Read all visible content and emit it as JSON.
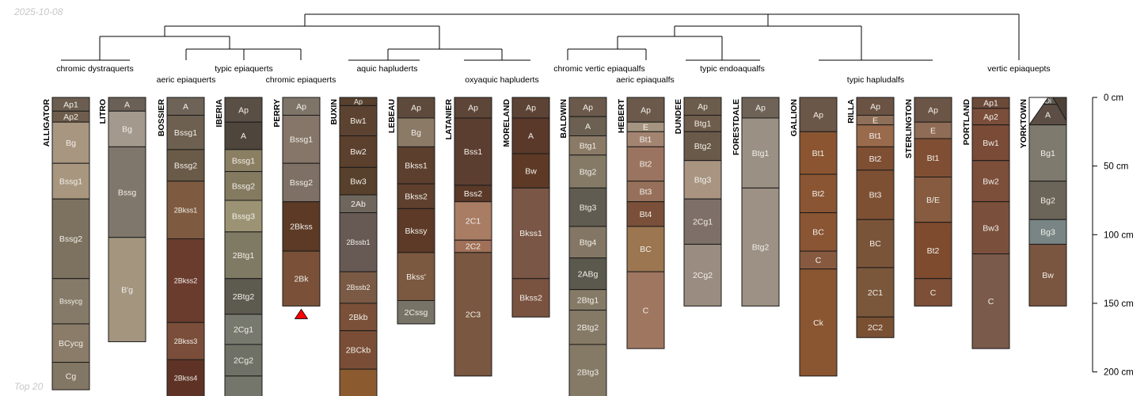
{
  "date": "2025-10-08",
  "footer": "Top 20",
  "colors": {
    "outline": "#1a1a1a",
    "tree": "#000000",
    "marker": "#ff0000"
  },
  "axis": {
    "unit": "cm",
    "ticks": [
      0,
      50,
      100,
      150,
      200
    ],
    "tick_labels": [
      "0 cm",
      "50 cm",
      "100 cm",
      "150 cm",
      "200 cm"
    ]
  },
  "taxa": [
    {
      "label": "chromic dystraquerts",
      "profiles": [
        "ALLIGATOR",
        "LITRO"
      ]
    },
    {
      "label": "aeric epiaquerts",
      "profiles": [
        "BOSSIER"
      ]
    },
    {
      "label": "typic epiaquerts",
      "profiles": [
        "IBERIA"
      ]
    },
    {
      "label": "chromic epiaquerts",
      "profiles": [
        "PERRY"
      ]
    },
    {
      "label": "aquic hapluderts",
      "profiles": [
        "BUXIN",
        "LEBEAU"
      ]
    },
    {
      "label": "oxyaquic hapluderts",
      "profiles": [
        "LATANIER",
        "MORELAND"
      ]
    },
    {
      "label": "chromic vertic epiaqualfs",
      "profiles": [
        "BALDWIN"
      ]
    },
    {
      "label": "aeric epiaqualfs",
      "profiles": [
        "HEBERT"
      ]
    },
    {
      "label": "typic endoaqualfs",
      "profiles": [
        "DUNDEE",
        "FORESTDALE"
      ]
    },
    {
      "label": "typic hapludalfs",
      "profiles": [
        "GALLION",
        "RILLA",
        "STERLINGTON",
        "PORTLAND"
      ]
    },
    {
      "label": "vertic epiaquepts",
      "profiles": [
        "YORKTOWN"
      ]
    }
  ],
  "profiles": [
    {
      "name": "ALLIGATOR",
      "horizons": [
        {
          "name": "Ap1",
          "top": 0,
          "bottom": 10,
          "color": "#6b5e50"
        },
        {
          "name": "Ap2",
          "top": 10,
          "bottom": 18,
          "color": "#6e5d4c"
        },
        {
          "name": "Bg",
          "top": 18,
          "bottom": 48,
          "color": "#a89680"
        },
        {
          "name": "Bssg1",
          "top": 48,
          "bottom": 74,
          "color": "#a8967f"
        },
        {
          "name": "Bssg2",
          "top": 74,
          "bottom": 132,
          "color": "#7d7260"
        },
        {
          "name": "Bssycg",
          "top": 132,
          "bottom": 165,
          "color": "#857a68"
        },
        {
          "name": "BCycg",
          "top": 165,
          "bottom": 193,
          "color": "#8a7c68"
        },
        {
          "name": "Cg",
          "top": 193,
          "bottom": 213,
          "color": "#827664"
        }
      ]
    },
    {
      "name": "LITRO",
      "horizons": [
        {
          "name": "A",
          "top": 0,
          "bottom": 10,
          "color": "#6a6055"
        },
        {
          "name": "Bg",
          "top": 10,
          "bottom": 36,
          "color": "#a39a8d"
        },
        {
          "name": "Bssg",
          "top": 36,
          "bottom": 102,
          "color": "#7f776c"
        },
        {
          "name": "B'g",
          "top": 102,
          "bottom": 178,
          "color": "#a4957f"
        }
      ]
    },
    {
      "name": "BOSSIER",
      "horizons": [
        {
          "name": "A",
          "top": 0,
          "bottom": 13,
          "color": "#6d6356"
        },
        {
          "name": "Bssg1",
          "top": 13,
          "bottom": 38,
          "color": "#6e6050"
        },
        {
          "name": "Bssg2",
          "top": 38,
          "bottom": 61,
          "color": "#6a5a48"
        },
        {
          "name": "2Bkss1",
          "top": 61,
          "bottom": 103,
          "color": "#7e5a40"
        },
        {
          "name": "2Bkss2",
          "top": 103,
          "bottom": 164,
          "color": "#6a3c2e"
        },
        {
          "name": "2Bkss3",
          "top": 164,
          "bottom": 191,
          "color": "#7a4e3a"
        },
        {
          "name": "2Bkss4",
          "top": 191,
          "bottom": 218,
          "color": "#5e3326"
        }
      ]
    },
    {
      "name": "IBERIA",
      "horizons": [
        {
          "name": "Ap",
          "top": 0,
          "bottom": 18,
          "color": "#5a4f45"
        },
        {
          "name": "A",
          "top": 18,
          "bottom": 38,
          "color": "#4e453c"
        },
        {
          "name": "Bssg1",
          "top": 38,
          "bottom": 54,
          "color": "#8b7f63"
        },
        {
          "name": "Bssg2",
          "top": 54,
          "bottom": 75,
          "color": "#837a60"
        },
        {
          "name": "Bssg3",
          "top": 75,
          "bottom": 98,
          "color": "#9c9374"
        },
        {
          "name": "2Btg1",
          "top": 98,
          "bottom": 132,
          "color": "#7f7a63"
        },
        {
          "name": "2Btg2",
          "top": 132,
          "bottom": 158,
          "color": "#5d5a50"
        },
        {
          "name": "2Cg1",
          "top": 158,
          "bottom": 180,
          "color": "#77786e"
        },
        {
          "name": "2Cg2",
          "top": 180,
          "bottom": 203,
          "color": "#707166"
        },
        {
          "name": "",
          "top": 203,
          "bottom": 220,
          "color": "#75766b"
        }
      ]
    },
    {
      "name": "PERRY",
      "horizons": [
        {
          "name": "Ap",
          "top": 0,
          "bottom": 13,
          "color": "#7f7468"
        },
        {
          "name": "Bssg1",
          "top": 13,
          "bottom": 48,
          "color": "#857669"
        },
        {
          "name": "Bssg2",
          "top": 48,
          "bottom": 76,
          "color": "#7e7064"
        },
        {
          "name": "2Bkss",
          "top": 76,
          "bottom": 112,
          "color": "#5c3a26"
        },
        {
          "name": "2Bk",
          "top": 112,
          "bottom": 152,
          "color": "#7a5138"
        }
      ]
    },
    {
      "name": "BUXIN",
      "horizons": [
        {
          "name": "Ap",
          "top": 0,
          "bottom": 6,
          "color": "#56402e"
        },
        {
          "name": "Bw1",
          "top": 6,
          "bottom": 28,
          "color": "#5c4331"
        },
        {
          "name": "Bw2",
          "top": 28,
          "bottom": 51,
          "color": "#5b402d"
        },
        {
          "name": "Bw3",
          "top": 51,
          "bottom": 71,
          "color": "#57402c"
        },
        {
          "name": "2Ab",
          "top": 71,
          "bottom": 84,
          "color": "#6e665d"
        },
        {
          "name": "2Bssb1",
          "top": 84,
          "bottom": 127,
          "color": "#675a55"
        },
        {
          "name": "2Bssb2",
          "top": 127,
          "bottom": 150,
          "color": "#7a5a45"
        },
        {
          "name": "2Bkb",
          "top": 150,
          "bottom": 170,
          "color": "#7a5038"
        },
        {
          "name": "2BCkb",
          "top": 170,
          "bottom": 198,
          "color": "#7a4e36"
        },
        {
          "name": "",
          "top": 198,
          "bottom": 220,
          "color": "#8b5a2f"
        }
      ]
    },
    {
      "name": "LEBEAU",
      "horizons": [
        {
          "name": "Ap",
          "top": 0,
          "bottom": 15,
          "color": "#5e4a3c"
        },
        {
          "name": "Bg",
          "top": 15,
          "bottom": 36,
          "color": "#8b7a66"
        },
        {
          "name": "Bkss1",
          "top": 36,
          "bottom": 63,
          "color": "#5c3f2d"
        },
        {
          "name": "Bkss2",
          "top": 63,
          "bottom": 81,
          "color": "#5f402e"
        },
        {
          "name": "Bkssy",
          "top": 81,
          "bottom": 113,
          "color": "#5c3a27"
        },
        {
          "name": "Bkss'",
          "top": 113,
          "bottom": 148,
          "color": "#7b5840"
        },
        {
          "name": "2Cssg",
          "top": 148,
          "bottom": 165,
          "color": "#777367"
        }
      ]
    },
    {
      "name": "LATANIER",
      "horizons": [
        {
          "name": "Ap",
          "top": 0,
          "bottom": 15,
          "color": "#5d4538"
        },
        {
          "name": "Bss1",
          "top": 15,
          "bottom": 64,
          "color": "#5c3e30"
        },
        {
          "name": "Bss2",
          "top": 64,
          "bottom": 76,
          "color": "#5a3929"
        },
        {
          "name": "2C1",
          "top": 76,
          "bottom": 104,
          "color": "#a97c64"
        },
        {
          "name": "2C2",
          "top": 104,
          "bottom": 113,
          "color": "#a07058"
        },
        {
          "name": "2C3",
          "top": 113,
          "bottom": 203,
          "color": "#7a5740"
        }
      ]
    },
    {
      "name": "MORELAND",
      "horizons": [
        {
          "name": "Ap",
          "top": 0,
          "bottom": 15,
          "color": "#5c4335"
        },
        {
          "name": "A",
          "top": 15,
          "bottom": 41,
          "color": "#5a382a"
        },
        {
          "name": "Bw",
          "top": 41,
          "bottom": 66,
          "color": "#5e3a26"
        },
        {
          "name": "Bkss1",
          "top": 66,
          "bottom": 132,
          "color": "#7a5646"
        },
        {
          "name": "Bkss2",
          "top": 132,
          "bottom": 160,
          "color": "#7a5340"
        }
      ]
    },
    {
      "name": "BALDWIN",
      "horizons": [
        {
          "name": "Ap",
          "top": 0,
          "bottom": 14,
          "color": "#6b5a4b"
        },
        {
          "name": "A",
          "top": 14,
          "bottom": 28,
          "color": "#6b6052"
        },
        {
          "name": "Btg1",
          "top": 28,
          "bottom": 42,
          "color": "#8a7a66"
        },
        {
          "name": "Btg2",
          "top": 42,
          "bottom": 66,
          "color": "#857a66"
        },
        {
          "name": "Btg3",
          "top": 66,
          "bottom": 94,
          "color": "#615c51"
        },
        {
          "name": "Btg4",
          "top": 94,
          "bottom": 117,
          "color": "#837664"
        },
        {
          "name": "2ABg",
          "top": 117,
          "bottom": 140,
          "color": "#5b584e"
        },
        {
          "name": "2Btg1",
          "top": 140,
          "bottom": 155,
          "color": "#857a66"
        },
        {
          "name": "2Btg2",
          "top": 155,
          "bottom": 180,
          "color": "#857a66"
        },
        {
          "name": "2Btg3",
          "top": 180,
          "bottom": 220,
          "color": "#857a66"
        }
      ]
    },
    {
      "name": "HEBERT",
      "horizons": [
        {
          "name": "Ap",
          "top": 0,
          "bottom": 18,
          "color": "#6b5a4b"
        },
        {
          "name": "E",
          "top": 18,
          "bottom": 25,
          "color": "#a59580"
        },
        {
          "name": "Bt1",
          "top": 25,
          "bottom": 36,
          "color": "#a38470"
        },
        {
          "name": "Bt2",
          "top": 36,
          "bottom": 61,
          "color": "#9a7460"
        },
        {
          "name": "Bt3",
          "top": 61,
          "bottom": 76,
          "color": "#96705a"
        },
        {
          "name": "Bt4",
          "top": 76,
          "bottom": 94,
          "color": "#7a503a"
        },
        {
          "name": "BC",
          "top": 94,
          "bottom": 127,
          "color": "#9b7650"
        },
        {
          "name": "C",
          "top": 127,
          "bottom": 183,
          "color": "#9f7660"
        }
      ]
    },
    {
      "name": "DUNDEE",
      "horizons": [
        {
          "name": "Ap",
          "top": 0,
          "bottom": 13,
          "color": "#6c5c4c"
        },
        {
          "name": "Btg1",
          "top": 13,
          "bottom": 25,
          "color": "#6e5c4c"
        },
        {
          "name": "Btg2",
          "top": 25,
          "bottom": 46,
          "color": "#6a5a4a"
        },
        {
          "name": "Btg3",
          "top": 46,
          "bottom": 74,
          "color": "#a89481"
        },
        {
          "name": "2Cg1",
          "top": 74,
          "bottom": 107,
          "color": "#7e7068"
        },
        {
          "name": "2Cg2",
          "top": 107,
          "bottom": 152,
          "color": "#9a8c80"
        }
      ]
    },
    {
      "name": "FORESTDALE",
      "horizons": [
        {
          "name": "Ap",
          "top": 0,
          "bottom": 15,
          "color": "#6e6356"
        },
        {
          "name": "Btg1",
          "top": 15,
          "bottom": 66,
          "color": "#9a9184"
        },
        {
          "name": "Btg2",
          "top": 66,
          "bottom": 152,
          "color": "#9c9184"
        }
      ]
    },
    {
      "name": "GALLION",
      "horizons": [
        {
          "name": "Ap",
          "top": 0,
          "bottom": 25,
          "color": "#6b5748"
        },
        {
          "name": "Bt1",
          "top": 25,
          "bottom": 56,
          "color": "#8a5530"
        },
        {
          "name": "Bt2",
          "top": 56,
          "bottom": 84,
          "color": "#8a5533"
        },
        {
          "name": "BC",
          "top": 84,
          "bottom": 112,
          "color": "#8a5533"
        },
        {
          "name": "C",
          "top": 112,
          "bottom": 125,
          "color": "#875a40"
        },
        {
          "name": "Ck",
          "top": 125,
          "bottom": 203,
          "color": "#8a5531"
        }
      ]
    },
    {
      "name": "RILLA",
      "horizons": [
        {
          "name": "Ap",
          "top": 0,
          "bottom": 13,
          "color": "#6b5344"
        },
        {
          "name": "E",
          "top": 13,
          "bottom": 20,
          "color": "#8f6f58"
        },
        {
          "name": "Bt1",
          "top": 20,
          "bottom": 36,
          "color": "#9a6a4c"
        },
        {
          "name": "Bt2",
          "top": 36,
          "bottom": 53,
          "color": "#7e4f33"
        },
        {
          "name": "Bt3",
          "top": 53,
          "bottom": 89,
          "color": "#7e5033"
        },
        {
          "name": "BC",
          "top": 89,
          "bottom": 124,
          "color": "#7a5439"
        },
        {
          "name": "2C1",
          "top": 124,
          "bottom": 160,
          "color": "#7a573b"
        },
        {
          "name": "2C2",
          "top": 160,
          "bottom": 175,
          "color": "#7a5033"
        }
      ]
    },
    {
      "name": "STERLINGTON",
      "horizons": [
        {
          "name": "Ap",
          "top": 0,
          "bottom": 18,
          "color": "#6b5546"
        },
        {
          "name": "E",
          "top": 18,
          "bottom": 30,
          "color": "#8f6c55"
        },
        {
          "name": "Bt1",
          "top": 30,
          "bottom": 58,
          "color": "#804f33"
        },
        {
          "name": "B/E",
          "top": 58,
          "bottom": 91,
          "color": "#875b3f"
        },
        {
          "name": "Bt2",
          "top": 91,
          "bottom": 132,
          "color": "#7e4b2f"
        },
        {
          "name": "C",
          "top": 132,
          "bottom": 152,
          "color": "#7d4f37"
        }
      ]
    },
    {
      "name": "PORTLAND",
      "horizons": [
        {
          "name": "Ap1",
          "top": 0,
          "bottom": 8,
          "color": "#6b4a3a"
        },
        {
          "name": "Ap2",
          "top": 8,
          "bottom": 20,
          "color": "#7a4e3a"
        },
        {
          "name": "Bw1",
          "top": 20,
          "bottom": 46,
          "color": "#7a4b36"
        },
        {
          "name": "Bw2",
          "top": 46,
          "bottom": 76,
          "color": "#7c4f3a"
        },
        {
          "name": "Bw3",
          "top": 76,
          "bottom": 114,
          "color": "#7a503c"
        },
        {
          "name": "C",
          "top": 114,
          "bottom": 183,
          "color": "#7a5a4a"
        }
      ]
    },
    {
      "name": "YORKTOWN",
      "horizons": [
        {
          "name": "Oi",
          "top": 0,
          "bottom": 5,
          "color": "#5e5a52"
        },
        {
          "name": "A",
          "top": 5,
          "bottom": 20,
          "color": "#5c4e44"
        },
        {
          "name": "Bg1",
          "top": 20,
          "bottom": 61,
          "color": "#7e7a6e"
        },
        {
          "name": "Bg2",
          "top": 61,
          "bottom": 89,
          "color": "#6b6458"
        },
        {
          "name": "Bg3",
          "top": 89,
          "bottom": 107,
          "color": "#788584"
        },
        {
          "name": "Bw",
          "top": 107,
          "bottom": 152,
          "color": "#7a5540"
        }
      ]
    }
  ]
}
